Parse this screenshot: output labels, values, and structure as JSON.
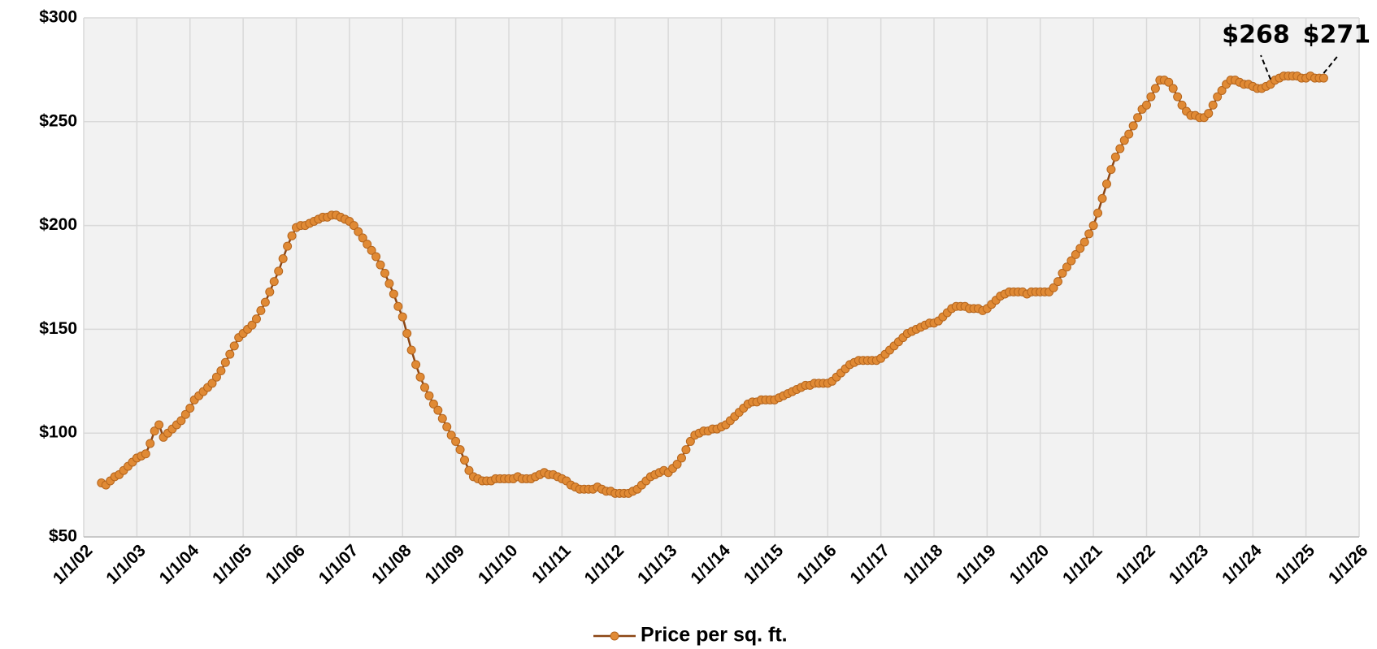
{
  "chart_data": {
    "type": "line",
    "legend_position": "bottom",
    "grid": true,
    "xlim": [
      "2002-01",
      "2026-01"
    ],
    "xticks": [
      {
        "value": "2002-01",
        "label": "1/1/02"
      },
      {
        "value": "2003-01",
        "label": "1/1/03"
      },
      {
        "value": "2004-01",
        "label": "1/1/04"
      },
      {
        "value": "2005-01",
        "label": "1/1/05"
      },
      {
        "value": "2006-01",
        "label": "1/1/06"
      },
      {
        "value": "2007-01",
        "label": "1/1/07"
      },
      {
        "value": "2008-01",
        "label": "1/1/08"
      },
      {
        "value": "2009-01",
        "label": "1/1/09"
      },
      {
        "value": "2010-01",
        "label": "1/1/10"
      },
      {
        "value": "2011-01",
        "label": "1/1/11"
      },
      {
        "value": "2012-01",
        "label": "1/1/12"
      },
      {
        "value": "2013-01",
        "label": "1/1/13"
      },
      {
        "value": "2014-01",
        "label": "1/1/14"
      },
      {
        "value": "2015-01",
        "label": "1/1/15"
      },
      {
        "value": "2016-01",
        "label": "1/1/16"
      },
      {
        "value": "2017-01",
        "label": "1/1/17"
      },
      {
        "value": "2018-01",
        "label": "1/1/18"
      },
      {
        "value": "2019-01",
        "label": "1/1/19"
      },
      {
        "value": "2020-01",
        "label": "1/1/20"
      },
      {
        "value": "2021-01",
        "label": "1/1/21"
      },
      {
        "value": "2022-01",
        "label": "1/1/22"
      },
      {
        "value": "2023-01",
        "label": "1/1/23"
      },
      {
        "value": "2024-01",
        "label": "1/1/24"
      },
      {
        "value": "2025-01",
        "label": "1/1/25"
      },
      {
        "value": "2026-01",
        "label": "1/1/26"
      }
    ],
    "ylim": [
      50,
      300
    ],
    "yticks": [
      {
        "value": 50,
        "label": "$50"
      },
      {
        "value": 100,
        "label": "$100"
      },
      {
        "value": 150,
        "label": "$150"
      },
      {
        "value": 200,
        "label": "$200"
      },
      {
        "value": 250,
        "label": "$250"
      },
      {
        "value": 300,
        "label": "$300"
      }
    ],
    "x": [
      "2002-05",
      "2002-06",
      "2002-07",
      "2002-08",
      "2002-09",
      "2002-10",
      "2002-11",
      "2002-12",
      "2003-01",
      "2003-02",
      "2003-03",
      "2003-04",
      "2003-05",
      "2003-06",
      "2003-07",
      "2003-08",
      "2003-09",
      "2003-10",
      "2003-11",
      "2003-12",
      "2004-01",
      "2004-02",
      "2004-03",
      "2004-04",
      "2004-05",
      "2004-06",
      "2004-07",
      "2004-08",
      "2004-09",
      "2004-10",
      "2004-11",
      "2004-12",
      "2005-01",
      "2005-02",
      "2005-03",
      "2005-04",
      "2005-05",
      "2005-06",
      "2005-07",
      "2005-08",
      "2005-09",
      "2005-10",
      "2005-11",
      "2005-12",
      "2006-01",
      "2006-02",
      "2006-03",
      "2006-04",
      "2006-05",
      "2006-06",
      "2006-07",
      "2006-08",
      "2006-09",
      "2006-10",
      "2006-11",
      "2006-12",
      "2007-01",
      "2007-02",
      "2007-03",
      "2007-04",
      "2007-05",
      "2007-06",
      "2007-07",
      "2007-08",
      "2007-09",
      "2007-10",
      "2007-11",
      "2007-12",
      "2008-01",
      "2008-02",
      "2008-03",
      "2008-04",
      "2008-05",
      "2008-06",
      "2008-07",
      "2008-08",
      "2008-09",
      "2008-10",
      "2008-11",
      "2008-12",
      "2009-01",
      "2009-02",
      "2009-03",
      "2009-04",
      "2009-05",
      "2009-06",
      "2009-07",
      "2009-08",
      "2009-09",
      "2009-10",
      "2009-11",
      "2009-12",
      "2010-01",
      "2010-02",
      "2010-03",
      "2010-04",
      "2010-05",
      "2010-06",
      "2010-07",
      "2010-08",
      "2010-09",
      "2010-10",
      "2010-11",
      "2010-12",
      "2011-01",
      "2011-02",
      "2011-03",
      "2011-04",
      "2011-05",
      "2011-06",
      "2011-07",
      "2011-08",
      "2011-09",
      "2011-10",
      "2011-11",
      "2011-12",
      "2012-01",
      "2012-02",
      "2012-03",
      "2012-04",
      "2012-05",
      "2012-06",
      "2012-07",
      "2012-08",
      "2012-09",
      "2012-10",
      "2012-11",
      "2012-12",
      "2013-01",
      "2013-02",
      "2013-03",
      "2013-04",
      "2013-05",
      "2013-06",
      "2013-07",
      "2013-08",
      "2013-09",
      "2013-10",
      "2013-11",
      "2013-12",
      "2014-01",
      "2014-02",
      "2014-03",
      "2014-04",
      "2014-05",
      "2014-06",
      "2014-07",
      "2014-08",
      "2014-09",
      "2014-10",
      "2014-11",
      "2014-12",
      "2015-01",
      "2015-02",
      "2015-03",
      "2015-04",
      "2015-05",
      "2015-06",
      "2015-07",
      "2015-08",
      "2015-09",
      "2015-10",
      "2015-11",
      "2015-12",
      "2016-01",
      "2016-02",
      "2016-03",
      "2016-04",
      "2016-05",
      "2016-06",
      "2016-07",
      "2016-08",
      "2016-09",
      "2016-10",
      "2016-11",
      "2016-12",
      "2017-01",
      "2017-02",
      "2017-03",
      "2017-04",
      "2017-05",
      "2017-06",
      "2017-07",
      "2017-08",
      "2017-09",
      "2017-10",
      "2017-11",
      "2017-12",
      "2018-01",
      "2018-02",
      "2018-03",
      "2018-04",
      "2018-05",
      "2018-06",
      "2018-07",
      "2018-08",
      "2018-09",
      "2018-10",
      "2018-11",
      "2018-12",
      "2019-01",
      "2019-02",
      "2019-03",
      "2019-04",
      "2019-05",
      "2019-06",
      "2019-07",
      "2019-08",
      "2019-09",
      "2019-10",
      "2019-11",
      "2019-12",
      "2020-01",
      "2020-02",
      "2020-03",
      "2020-04",
      "2020-05",
      "2020-06",
      "2020-07",
      "2020-08",
      "2020-09",
      "2020-10",
      "2020-11",
      "2020-12",
      "2021-01",
      "2021-02",
      "2021-03",
      "2021-04",
      "2021-05",
      "2021-06",
      "2021-07",
      "2021-08",
      "2021-09",
      "2021-10",
      "2021-11",
      "2021-12",
      "2022-01",
      "2022-02",
      "2022-03",
      "2022-04",
      "2022-05",
      "2022-06",
      "2022-07",
      "2022-08",
      "2022-09",
      "2022-10",
      "2022-11",
      "2022-12",
      "2023-01",
      "2023-02",
      "2023-03",
      "2023-04",
      "2023-05",
      "2023-06",
      "2023-07",
      "2023-08",
      "2023-09",
      "2023-10",
      "2023-11",
      "2023-12",
      "2024-01",
      "2024-02",
      "2024-03",
      "2024-04",
      "2024-05",
      "2024-06",
      "2024-07",
      "2024-08",
      "2024-09",
      "2024-10",
      "2024-11",
      "2024-12",
      "2025-01",
      "2025-02",
      "2025-03",
      "2025-04",
      "2025-05"
    ],
    "series": [
      {
        "name": "Price per sq. ft.",
        "color": "#8b4513",
        "marker_color": "#e08a35",
        "values": [
          76,
          75,
          77,
          79,
          80,
          82,
          84,
          86,
          88,
          89,
          90,
          95,
          101,
          104,
          98,
          100,
          102,
          104,
          106,
          109,
          112,
          116,
          118,
          120,
          122,
          124,
          127,
          130,
          134,
          138,
          142,
          146,
          148,
          150,
          152,
          155,
          159,
          163,
          168,
          173,
          178,
          184,
          190,
          195,
          199,
          200,
          200,
          201,
          202,
          203,
          204,
          204,
          205,
          205,
          204,
          203,
          202,
          200,
          197,
          194,
          191,
          188,
          185,
          181,
          177,
          172,
          167,
          161,
          156,
          148,
          140,
          133,
          127,
          122,
          118,
          114,
          111,
          107,
          103,
          99,
          96,
          92,
          87,
          82,
          79,
          78,
          77,
          77,
          77,
          78,
          78,
          78,
          78,
          78,
          79,
          78,
          78,
          78,
          79,
          80,
          81,
          80,
          80,
          79,
          78,
          77,
          75,
          74,
          73,
          73,
          73,
          73,
          74,
          73,
          72,
          72,
          71,
          71,
          71,
          71,
          72,
          73,
          75,
          77,
          79,
          80,
          81,
          82,
          81,
          83,
          85,
          88,
          92,
          96,
          99,
          100,
          101,
          101,
          102,
          102,
          103,
          104,
          106,
          108,
          110,
          112,
          114,
          115,
          115,
          116,
          116,
          116,
          116,
          117,
          118,
          119,
          120,
          121,
          122,
          123,
          123,
          124,
          124,
          124,
          124,
          125,
          127,
          129,
          131,
          133,
          134,
          135,
          135,
          135,
          135,
          135,
          136,
          138,
          140,
          142,
          144,
          146,
          148,
          149,
          150,
          151,
          152,
          153,
          153,
          154,
          156,
          158,
          160,
          161,
          161,
          161,
          160,
          160,
          160,
          159,
          160,
          162,
          164,
          166,
          167,
          168,
          168,
          168,
          168,
          167,
          168,
          168,
          168,
          168,
          168,
          170,
          173,
          177,
          180,
          183,
          186,
          189,
          192,
          196,
          200,
          206,
          213,
          220,
          227,
          233,
          237,
          241,
          244,
          248,
          252,
          256,
          258,
          262,
          266,
          270,
          270,
          269,
          266,
          262,
          258,
          255,
          253,
          253,
          252,
          252,
          254,
          258,
          262,
          265,
          268,
          270,
          270,
          269,
          268,
          268,
          267,
          266,
          266,
          267,
          268,
          270,
          271,
          272,
          272,
          272,
          272,
          271,
          271,
          272,
          271,
          271,
          271
        ]
      }
    ],
    "annotations": [
      {
        "label": "$268",
        "x": "2024-05",
        "value": 268
      },
      {
        "label": "$271",
        "x": "2025-05",
        "value": 271
      }
    ]
  }
}
